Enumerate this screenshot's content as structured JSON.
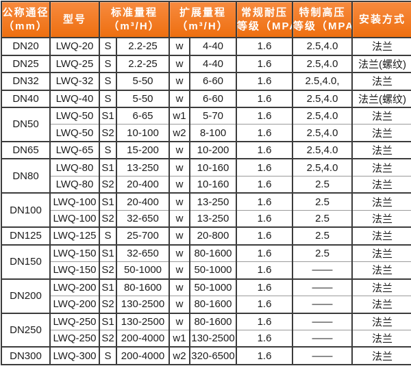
{
  "colors": {
    "header_bg_top": "#f78a3e",
    "header_bg_bottom": "#ee6f10",
    "header_text": "#ffffff",
    "body_text": "#1b1b1b",
    "border_dark": "#3b3b3b",
    "border_light": "#9a9a9a",
    "row_bg": "#ffffff"
  },
  "table": {
    "header_keys": [
      "nominal-diameter",
      "model",
      "standard-range",
      "extended-range",
      "normal-pressure-class",
      "high-pressure-class",
      "installation"
    ],
    "headers": [
      {
        "lines": [
          "公称通径",
          "（mm）"
        ],
        "colspan": 1
      },
      {
        "lines": [
          "型号"
        ],
        "colspan": 1
      },
      {
        "lines": [
          "标准量程",
          "（m³/H）"
        ],
        "colspan": 2
      },
      {
        "lines": [
          "扩展量程",
          "（m³/H）"
        ],
        "colspan": 2
      },
      {
        "lines": [
          "常规耐压",
          "等级（MPA）"
        ],
        "colspan": 1
      },
      {
        "lines": [
          "特制高压",
          "等级（MPA）"
        ],
        "colspan": 1
      },
      {
        "lines": [
          "安装方式"
        ],
        "colspan": 1
      }
    ],
    "column_keys": [
      "model",
      "std-code",
      "std-range",
      "ext-code",
      "ext-range",
      "normal-pressure",
      "high-pressure",
      "installation"
    ],
    "groups": [
      {
        "dn": "DN20",
        "rows": [
          [
            "LWQ-20",
            "S",
            "2.2-25",
            "w",
            "4-40",
            "1.6",
            "2.5,4.0",
            "法兰"
          ]
        ]
      },
      {
        "dn": "DN25",
        "rows": [
          [
            "LWQ-25",
            "S",
            "2.2-25",
            "w",
            "4-40",
            "1.6",
            "2.5,4.0",
            "法兰(螺纹)"
          ]
        ]
      },
      {
        "dn": "DN32",
        "rows": [
          [
            "LWQ-32",
            "S",
            "5-50",
            "w",
            "6-60",
            "1.6",
            "2.5,4.0,",
            "法兰"
          ]
        ]
      },
      {
        "dn": "DN40",
        "rows": [
          [
            "LWQ-40",
            "S",
            "5-50",
            "w",
            "6-60",
            "1.6",
            "2.5,4.0",
            "法兰(螺纹)"
          ]
        ]
      },
      {
        "dn": "DN50",
        "rows": [
          [
            "LWQ-50",
            "S1",
            "6-65",
            "w1",
            "5-70",
            "1.6",
            "2.5,4.0",
            "法兰"
          ],
          [
            "LWQ-50",
            "S2",
            "10-100",
            "w2",
            "8-100",
            "1.6",
            "2.5,4.0",
            "法兰"
          ]
        ]
      },
      {
        "dn": "DN65",
        "rows": [
          [
            "LWQ-65",
            "S",
            "15-200",
            "w",
            "10-200",
            "1.6",
            "2.5,4.0",
            "法兰"
          ]
        ]
      },
      {
        "dn": "DN80",
        "rows": [
          [
            "LWQ-80",
            "S1",
            "13-250",
            "w",
            "10-160",
            "1.6",
            "2.5,4.0",
            "法兰"
          ],
          [
            "LWQ-80",
            "S2",
            "20-400",
            "w",
            "10-160",
            "1.6",
            "2.5",
            "法兰"
          ]
        ]
      },
      {
        "dn": "DN100",
        "rows": [
          [
            "LWQ-100",
            "S1",
            "20-400",
            "w",
            "13-250",
            "1.6",
            "2.5",
            "法兰"
          ],
          [
            "LWQ-100",
            "S2",
            "32-650",
            "w",
            "13-250",
            "1.6",
            "2.5",
            "法兰"
          ]
        ]
      },
      {
        "dn": "DN125",
        "rows": [
          [
            "LWQ-125",
            "S",
            "25-700",
            "w",
            "20-800",
            "1.6",
            "2.5",
            "法兰"
          ]
        ]
      },
      {
        "dn": "DN150",
        "rows": [
          [
            "LWQ-150",
            "S1",
            "32-650",
            "w",
            "80-1600",
            "1.6",
            "2.5",
            "法兰"
          ],
          [
            "LWQ-150",
            "S2",
            "50-1000",
            "w",
            "50-1000",
            "1.6",
            "——",
            "法兰"
          ]
        ]
      },
      {
        "dn": "DN200",
        "rows": [
          [
            "LWQ-200",
            "S1",
            "80-1600",
            "w",
            "50-1000",
            "1.6",
            "——",
            "法兰"
          ],
          [
            "LWQ-200",
            "S2",
            "130-2500",
            "w",
            "80-1600",
            "1.6",
            "——",
            "法兰"
          ]
        ]
      },
      {
        "dn": "DN250",
        "rows": [
          [
            "LWQ-250",
            "S1",
            "130-2500",
            "w",
            "80-1600",
            "1.6",
            "——",
            "法兰"
          ],
          [
            "LWQ-250",
            "S2",
            "200-4000",
            "w1",
            "130-2500",
            "1.6",
            "——",
            "法兰"
          ]
        ]
      },
      {
        "dn": "DN300",
        "rows": [
          [
            "LWQ-300",
            "S",
            "200-4000",
            "w2",
            "320-6500",
            "1.6",
            "——",
            "法兰"
          ]
        ]
      }
    ]
  }
}
